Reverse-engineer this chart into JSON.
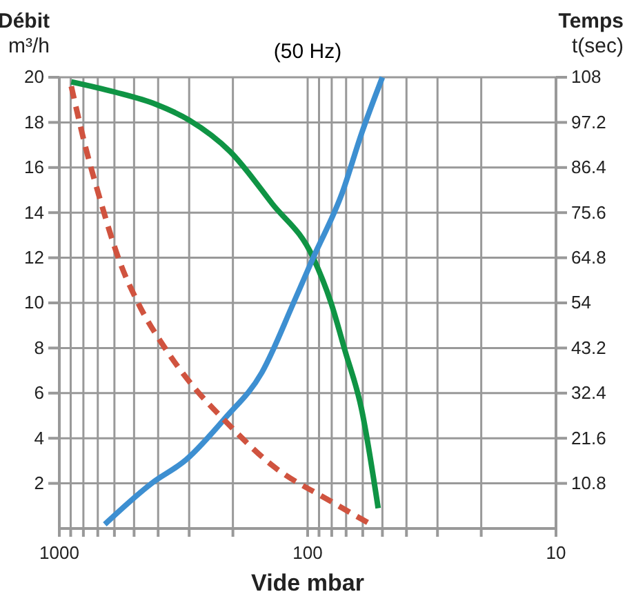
{
  "chart_data": {
    "type": "line",
    "title": "(50 Hz)",
    "xlabel": "Vide mbar",
    "ylabel": "Débit m³/h",
    "y2label": "Temps t(sec)",
    "log": "x",
    "grid": true,
    "marker": "none",
    "xlim": [
      1000,
      10
    ],
    "xticks": [
      1000,
      {
        "value": 900,
        "label": null
      },
      {
        "value": 800,
        "label": null
      },
      {
        "value": 700,
        "label": null
      },
      {
        "value": 600,
        "label": null
      },
      {
        "value": 500,
        "label": null
      },
      {
        "value": 400,
        "label": null
      },
      {
        "value": 300,
        "label": null
      },
      {
        "value": 200,
        "label": null
      },
      100,
      {
        "value": 90,
        "label": null
      },
      {
        "value": 80,
        "label": null
      },
      {
        "value": 70,
        "label": null
      },
      {
        "value": 60,
        "label": null
      },
      {
        "value": 50,
        "label": null
      },
      {
        "value": 40,
        "label": null
      },
      {
        "value": 30,
        "label": null
      },
      {
        "value": 20,
        "label": null
      },
      10
    ],
    "ylim": [
      0,
      20
    ],
    "yticks": [
      2,
      4,
      6,
      8,
      10,
      12,
      14,
      16,
      18,
      20
    ],
    "y2lim": [
      0,
      108
    ],
    "y2ticks": [
      10.8,
      21.6,
      32.4,
      43.2,
      54,
      64.8,
      75.6,
      86.4,
      97.2,
      108
    ],
    "series": [
      {
        "color": "#0f9444",
        "line_style": "solid",
        "x": [
          895,
          600,
          408,
          300,
          205,
          139,
          95,
          80.5,
          70.8,
          60.7,
          52
        ],
        "values": [
          19.8,
          19.35,
          18.8,
          18.1,
          16.7,
          14.4,
          12,
          10,
          7.9,
          5.3,
          0.9
        ]
      },
      {
        "color": "#3d8fd1",
        "line_style": "solid",
        "axis": "y2",
        "x": [
          656,
          425,
          308,
          215,
          153,
          114,
          95,
          72.6,
          60.7,
          50
        ],
        "values": [
          1,
          10.8,
          16.5,
          26.4,
          37.3,
          54,
          64.8,
          80.3,
          94.5,
          108
        ]
      },
      {
        "color": "#d0533f",
        "line_style": "dashed",
        "x": [
          895,
          784,
          690,
          570,
          482,
          373,
          289,
          215,
          139,
          80.5,
          57
        ],
        "values": [
          19.6,
          16.9,
          14.7,
          11.8,
          10,
          7.95,
          6.3,
          4.77,
          2.8,
          1.2,
          0.25
        ]
      }
    ]
  }
}
